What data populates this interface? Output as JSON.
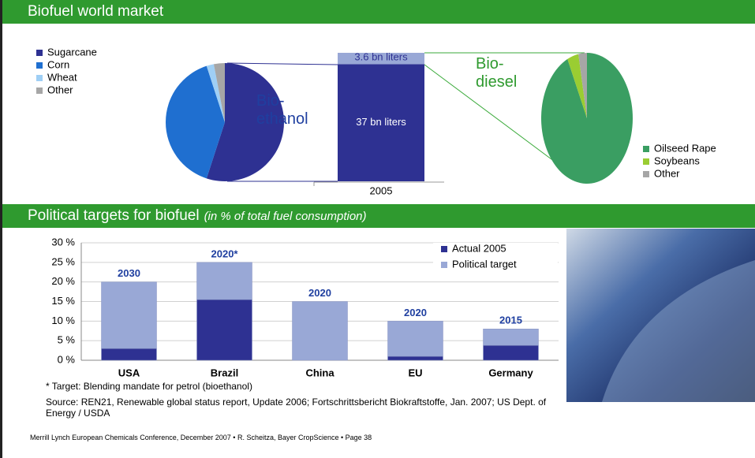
{
  "header": {
    "title": "Biofuel world market"
  },
  "section2": {
    "title": "Political targets for biofuel",
    "subtitle": "(in % of total fuel consumption)"
  },
  "chart_data": [
    {
      "type": "pie",
      "categories": [
        "Sugarcane",
        "Corn",
        "Wheat",
        "Other"
      ],
      "values": [
        55,
        40,
        2,
        3
      ],
      "colors": [
        "#2e3192",
        "#1f6fd0",
        "#9fcff5",
        "#a6a6a6"
      ]
    },
    {
      "type": "bar",
      "stacked": true,
      "categories": [
        "2005"
      ],
      "series": [
        {
          "name": "Bio-\nethanol",
          "color": "#2e3192",
          "values": [
            37
          ],
          "value_labels": [
            "37 bn liters"
          ]
        },
        {
          "name": "Bio-\ndiesel",
          "color": "#99a8d6",
          "values": [
            3.6
          ],
          "value_labels": [
            "3.6 bn liters"
          ]
        }
      ]
    },
    {
      "type": "pie",
      "categories": [
        "Oilseed Rape",
        "Soybeans",
        "Other"
      ],
      "values": [
        93,
        4,
        3
      ],
      "colors": [
        "#3a9e62",
        "#9acd32",
        "#a6a6a6"
      ]
    },
    {
      "type": "bar",
      "stacked": true,
      "categories": [
        "USA",
        "Brazil",
        "China",
        "EU",
        "Germany"
      ],
      "series": [
        {
          "name": "Actual 2005",
          "color": "#2e3192",
          "values": [
            3,
            15.5,
            0,
            1,
            3.8
          ]
        },
        {
          "name": "Political target",
          "color": "#99a8d6",
          "values": [
            17,
            9.5,
            15,
            9,
            4.2
          ]
        }
      ],
      "annotations": [
        "2030",
        "2020*",
        "2020",
        "2020",
        "2015"
      ],
      "ylim": [
        0,
        30
      ],
      "yticks": [
        {
          "value": 0,
          "label": "0 %"
        },
        {
          "value": 5,
          "label": "5 %"
        },
        {
          "value": 10,
          "label": "10 %"
        },
        {
          "value": 15,
          "label": "15 %"
        },
        {
          "value": 20,
          "label": "20 %"
        },
        {
          "value": 25,
          "label": "25 %"
        },
        {
          "value": 30,
          "label": "30 %"
        }
      ],
      "grid": true,
      "legend": "top-right"
    }
  ],
  "footnote": "* Target: Blending mandate for petrol (bioethanol)",
  "source": "Source: REN21, Renewable global status report, Update 2006; Fortschrittsbericht Biokraftstoffe, Jan. 2007; US Dept. of Energy / USDA",
  "footer": "Merrill Lynch European Chemicals Conference, December 2007 • R. Scheitza, Bayer CropScience  • Page 38"
}
